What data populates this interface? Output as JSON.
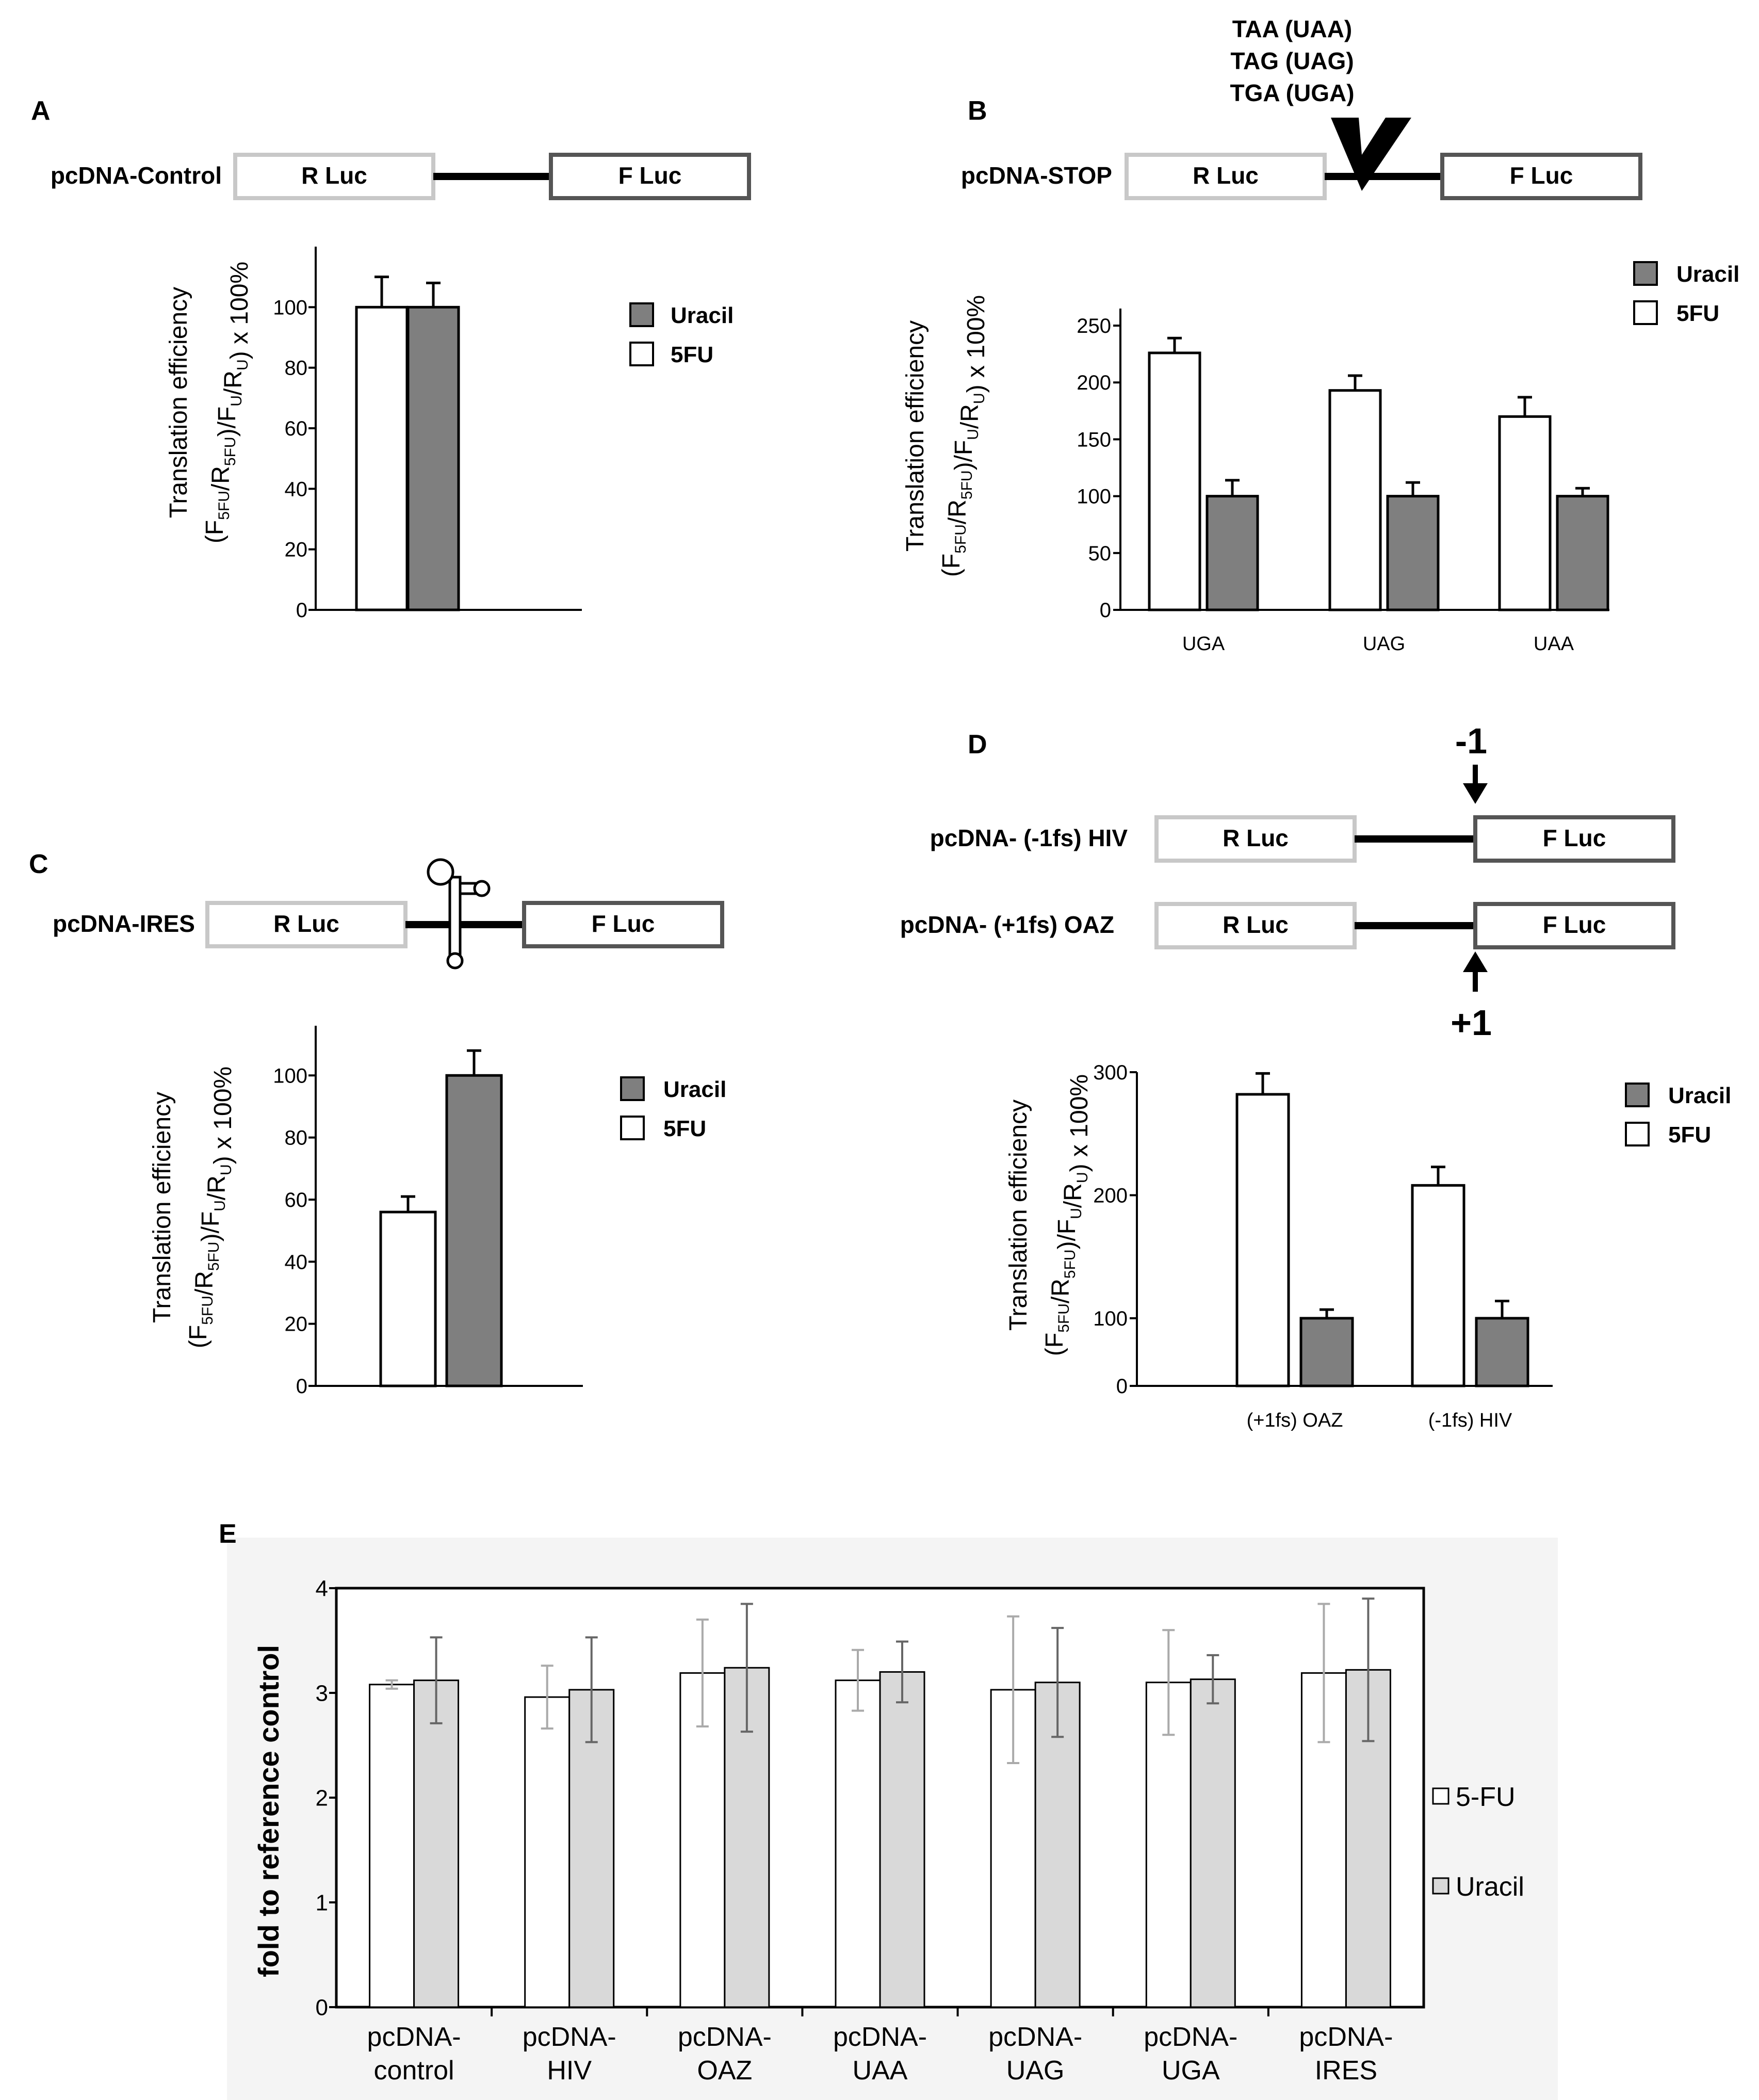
{
  "panels": {
    "A": {
      "letter": "A",
      "constructs": [
        {
          "name": "pcDNA-Control",
          "r_box": "R Luc",
          "f_box": "F Luc"
        }
      ],
      "ylabel_line1": "Translation efficiency",
      "ylabel_line2": "(F5FU/R5FU)/FU/RU) x 100%",
      "legend": [
        "Uracil",
        "5FU"
      ]
    },
    "B": {
      "letter": "B",
      "constructs": [
        {
          "name": "pcDNA-STOP",
          "r_box": "R Luc",
          "f_box": "F Luc"
        }
      ],
      "stop_codons": [
        "TAA (UAA)",
        "TAG (UAG)",
        "TGA (UGA)"
      ],
      "ylabel_line1": "Translation efficiency",
      "ylabel_line2": "(F5FU/R5FU)/FU/RU) x 100%",
      "legend": [
        "Uracil",
        "5FU"
      ]
    },
    "C": {
      "letter": "C",
      "constructs": [
        {
          "name": "pcDNA-IRES",
          "r_box": "R Luc",
          "f_box": "F Luc"
        }
      ],
      "ylabel_line1": "Translation efficiency",
      "ylabel_line2": "(F5FU/R5FU)/FU/RU) x 100%",
      "legend": [
        "Uracil",
        "5FU"
      ]
    },
    "D": {
      "letter": "D",
      "constructs": [
        {
          "name": "pcDNA- (-1fs) HIV",
          "r_box": "R Luc",
          "f_box": "F Luc"
        },
        {
          "name": "pcDNA- (+1fs) OAZ",
          "r_box": "R Luc",
          "f_box": "F Luc"
        }
      ],
      "frameshift_labels": [
        "-1",
        "+1"
      ],
      "ylabel_line1": "Translation efficiency",
      "ylabel_line2": "(F5FU/R5FU)/FU/RU) x 100%",
      "legend": [
        "Uracil",
        "5FU"
      ]
    },
    "E": {
      "letter": "E",
      "ylabel": "fold to reference control",
      "legend": [
        "5-FU",
        "Uracil"
      ]
    }
  },
  "colors": {
    "white_bar": "#ffffff",
    "dark_bar": "#7f7f7f",
    "light_bar": "#d9d9d9",
    "r_box_border": "#c8c8c8",
    "f_box_border": "#555555",
    "panelE_bg": "#f4f4f4"
  },
  "chart_data": [
    {
      "panel": "A",
      "type": "bar",
      "categories": [
        ""
      ],
      "series": [
        {
          "name": "5FU",
          "values": [
            100
          ],
          "errors": [
            10
          ]
        },
        {
          "name": "Uracil",
          "values": [
            100
          ],
          "errors": [
            8
          ]
        }
      ],
      "yticks": [
        0,
        20,
        40,
        60,
        80,
        100
      ],
      "ylim": [
        0,
        120
      ]
    },
    {
      "panel": "B",
      "type": "bar",
      "categories": [
        "UGA",
        "UAG",
        "UAA"
      ],
      "series": [
        {
          "name": "5FU",
          "values": [
            226,
            193,
            170
          ],
          "errors": [
            13,
            13,
            17
          ]
        },
        {
          "name": "Uracil",
          "values": [
            100,
            100,
            100
          ],
          "errors": [
            14,
            12,
            7
          ]
        }
      ],
      "yticks": [
        0,
        50,
        100,
        150,
        200,
        250
      ],
      "ylim": [
        0,
        265
      ]
    },
    {
      "panel": "C",
      "type": "bar",
      "categories": [
        ""
      ],
      "series": [
        {
          "name": "5FU",
          "values": [
            56
          ],
          "errors": [
            5
          ]
        },
        {
          "name": "Uracil",
          "values": [
            100
          ],
          "errors": [
            8
          ]
        }
      ],
      "yticks": [
        0,
        20,
        40,
        60,
        80,
        100
      ],
      "ylim": [
        0,
        116
      ]
    },
    {
      "panel": "D",
      "type": "bar",
      "categories": [
        "(+1fs) OAZ",
        "(-1fs) HIV"
      ],
      "series": [
        {
          "name": "5FU",
          "values": [
            282,
            208
          ],
          "errors": [
            17,
            15
          ]
        },
        {
          "name": "Uracil",
          "values": [
            100,
            100
          ],
          "errors": [
            7,
            14
          ]
        }
      ],
      "yticks": [
        0,
        100,
        200,
        300
      ],
      "ylim": [
        45,
        300
      ]
    },
    {
      "panel": "E",
      "type": "bar",
      "categories": [
        "pcDNA-\ncontrol",
        "pcDNA-\nHIV",
        "pcDNA-\nOAZ",
        "pcDNA-\nUAA",
        "pcDNA-\nUAG",
        "pcDNA-\nUGA",
        "pcDNA-\nIRES"
      ],
      "series": [
        {
          "name": "5-FU",
          "values": [
            3.08,
            2.96,
            3.19,
            3.12,
            3.03,
            3.1,
            3.19
          ],
          "errors": [
            0.04,
            0.3,
            0.51,
            0.29,
            0.7,
            0.5,
            0.66
          ]
        },
        {
          "name": "Uracil",
          "values": [
            3.12,
            3.03,
            3.24,
            3.2,
            3.1,
            3.13,
            3.22
          ],
          "errors": [
            0.41,
            0.5,
            0.61,
            0.29,
            0.52,
            0.23,
            0.68
          ]
        }
      ],
      "yticks": [
        0,
        1,
        2,
        3,
        4
      ],
      "ylim": [
        0,
        4
      ]
    }
  ]
}
